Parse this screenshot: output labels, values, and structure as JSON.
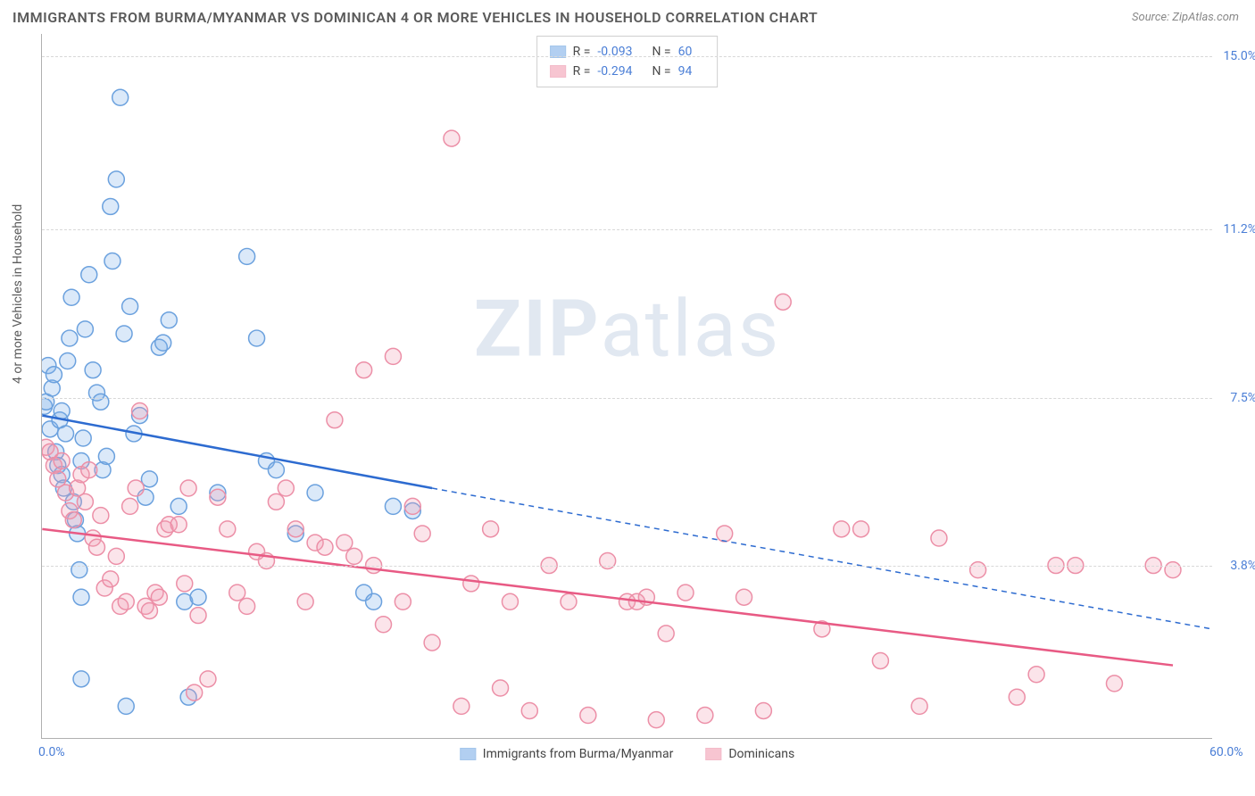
{
  "title": "IMMIGRANTS FROM BURMA/MYANMAR VS DOMINICAN 4 OR MORE VEHICLES IN HOUSEHOLD CORRELATION CHART",
  "source": "Source: ZipAtlas.com",
  "watermark": {
    "prefix": "ZIP",
    "suffix": "atlas"
  },
  "y_axis_title": "4 or more Vehicles in Household",
  "chart": {
    "type": "scatter",
    "xlim": [
      0,
      60
    ],
    "ylim": [
      0,
      15.5
    ],
    "x_ticks": [
      {
        "v": 0,
        "label": "0.0%"
      },
      {
        "v": 60,
        "label": "60.0%"
      }
    ],
    "y_ticks": [
      {
        "v": 3.8,
        "label": "3.8%"
      },
      {
        "v": 7.5,
        "label": "7.5%"
      },
      {
        "v": 11.2,
        "label": "11.2%"
      },
      {
        "v": 15.0,
        "label": "15.0%"
      }
    ],
    "grid_color": "#d8d8d8",
    "background_color": "#ffffff",
    "marker_radius": 9,
    "marker_stroke_width": 1.5,
    "line_width": 2.5,
    "series": [
      {
        "name": "Immigrants from Burma/Myanmar",
        "R": -0.093,
        "N": 60,
        "fill": "#7fb0e8",
        "fill_opacity": 0.28,
        "stroke": "#6ba1de",
        "line_color": "#2d6bd0",
        "points": [
          [
            0.1,
            7.3
          ],
          [
            0.2,
            7.4
          ],
          [
            0.3,
            8.2
          ],
          [
            0.4,
            6.8
          ],
          [
            0.5,
            7.7
          ],
          [
            0.6,
            8.0
          ],
          [
            0.7,
            6.3
          ],
          [
            0.8,
            6.0
          ],
          [
            0.9,
            7.0
          ],
          [
            1.0,
            7.2
          ],
          [
            1.0,
            5.8
          ],
          [
            1.1,
            5.5
          ],
          [
            1.2,
            6.7
          ],
          [
            1.3,
            8.3
          ],
          [
            1.4,
            8.8
          ],
          [
            1.5,
            9.7
          ],
          [
            1.6,
            5.2
          ],
          [
            1.7,
            4.8
          ],
          [
            1.8,
            4.5
          ],
          [
            1.9,
            3.7
          ],
          [
            2.0,
            3.1
          ],
          [
            2.0,
            6.1
          ],
          [
            2.1,
            6.6
          ],
          [
            2.2,
            9.0
          ],
          [
            2.4,
            10.2
          ],
          [
            2.6,
            8.1
          ],
          [
            2.8,
            7.6
          ],
          [
            3.0,
            7.4
          ],
          [
            3.1,
            5.9
          ],
          [
            3.3,
            6.2
          ],
          [
            3.5,
            11.7
          ],
          [
            3.6,
            10.5
          ],
          [
            3.8,
            12.3
          ],
          [
            4.0,
            14.1
          ],
          [
            4.2,
            8.9
          ],
          [
            4.5,
            9.5
          ],
          [
            4.7,
            6.7
          ],
          [
            5.0,
            7.1
          ],
          [
            5.3,
            5.3
          ],
          [
            5.5,
            5.7
          ],
          [
            6.0,
            8.6
          ],
          [
            6.2,
            8.7
          ],
          [
            6.5,
            9.2
          ],
          [
            7.0,
            5.1
          ],
          [
            7.3,
            3.0
          ],
          [
            7.5,
            0.9
          ],
          [
            8.0,
            3.1
          ],
          [
            9.0,
            5.4
          ],
          [
            10.5,
            10.6
          ],
          [
            11.0,
            8.8
          ],
          [
            11.5,
            6.1
          ],
          [
            12.0,
            5.9
          ],
          [
            13.0,
            4.5
          ],
          [
            14.0,
            5.4
          ],
          [
            16.5,
            3.2
          ],
          [
            17.0,
            3.0
          ],
          [
            18.0,
            5.1
          ],
          [
            19.0,
            5.0
          ],
          [
            2.0,
            1.3
          ],
          [
            4.3,
            0.7
          ]
        ],
        "trend_solid": {
          "x1": 0,
          "y1": 7.1,
          "x2": 20,
          "y2": 5.5
        },
        "trend_dashed": {
          "x1": 20,
          "y1": 5.5,
          "x2": 60,
          "y2": 2.4
        }
      },
      {
        "name": "Dominicans",
        "R": -0.294,
        "N": 94,
        "fill": "#f29fb4",
        "fill_opacity": 0.28,
        "stroke": "#ec8fa7",
        "line_color": "#e85a84",
        "points": [
          [
            0.2,
            6.4
          ],
          [
            0.4,
            6.3
          ],
          [
            0.6,
            6.0
          ],
          [
            0.8,
            5.7
          ],
          [
            1.0,
            6.1
          ],
          [
            1.2,
            5.4
          ],
          [
            1.4,
            5.0
          ],
          [
            1.6,
            4.8
          ],
          [
            1.8,
            5.5
          ],
          [
            2.0,
            5.8
          ],
          [
            2.2,
            5.2
          ],
          [
            2.4,
            5.9
          ],
          [
            2.6,
            4.4
          ],
          [
            2.8,
            4.2
          ],
          [
            3.0,
            4.9
          ],
          [
            3.2,
            3.3
          ],
          [
            3.5,
            3.5
          ],
          [
            3.8,
            4.0
          ],
          [
            4.0,
            2.9
          ],
          [
            4.3,
            3.0
          ],
          [
            4.5,
            5.1
          ],
          [
            4.8,
            5.5
          ],
          [
            5.0,
            7.2
          ],
          [
            5.3,
            2.9
          ],
          [
            5.5,
            2.8
          ],
          [
            5.8,
            3.2
          ],
          [
            6.0,
            3.1
          ],
          [
            6.3,
            4.6
          ],
          [
            6.5,
            4.7
          ],
          [
            7.0,
            4.7
          ],
          [
            7.3,
            3.4
          ],
          [
            7.5,
            5.5
          ],
          [
            8.0,
            2.7
          ],
          [
            8.5,
            1.3
          ],
          [
            9.0,
            5.3
          ],
          [
            9.5,
            4.6
          ],
          [
            10.0,
            3.2
          ],
          [
            10.5,
            2.9
          ],
          [
            11.0,
            4.1
          ],
          [
            11.5,
            3.9
          ],
          [
            12.0,
            5.2
          ],
          [
            12.5,
            5.5
          ],
          [
            13.0,
            4.6
          ],
          [
            13.5,
            3.0
          ],
          [
            14.0,
            4.3
          ],
          [
            14.5,
            4.2
          ],
          [
            15.0,
            7.0
          ],
          [
            15.5,
            4.3
          ],
          [
            16.0,
            4.0
          ],
          [
            16.5,
            8.1
          ],
          [
            17.0,
            3.8
          ],
          [
            17.5,
            2.5
          ],
          [
            18.0,
            8.4
          ],
          [
            18.5,
            3.0
          ],
          [
            19.0,
            5.1
          ],
          [
            19.5,
            4.5
          ],
          [
            20.0,
            2.1
          ],
          [
            21.0,
            13.2
          ],
          [
            21.5,
            0.7
          ],
          [
            22.0,
            3.4
          ],
          [
            23.0,
            4.6
          ],
          [
            23.5,
            1.1
          ],
          [
            24.0,
            3.0
          ],
          [
            25.0,
            0.6
          ],
          [
            26.0,
            3.8
          ],
          [
            27.0,
            3.0
          ],
          [
            28.0,
            0.5
          ],
          [
            29.0,
            3.9
          ],
          [
            30.0,
            3.0
          ],
          [
            30.5,
            3.0
          ],
          [
            31.0,
            3.1
          ],
          [
            31.5,
            0.4
          ],
          [
            32.0,
            2.3
          ],
          [
            33.0,
            3.2
          ],
          [
            34.0,
            0.5
          ],
          [
            35.0,
            4.5
          ],
          [
            36.0,
            3.1
          ],
          [
            37.0,
            0.6
          ],
          [
            38.0,
            9.6
          ],
          [
            40.0,
            2.4
          ],
          [
            41.0,
            4.6
          ],
          [
            42.0,
            4.6
          ],
          [
            43.0,
            1.7
          ],
          [
            45.0,
            0.7
          ],
          [
            46.0,
            4.4
          ],
          [
            48.0,
            3.7
          ],
          [
            50.0,
            0.9
          ],
          [
            51.0,
            1.4
          ],
          [
            52.0,
            3.8
          ],
          [
            53.0,
            3.8
          ],
          [
            55.0,
            1.2
          ],
          [
            57.0,
            3.8
          ],
          [
            58.0,
            3.7
          ],
          [
            7.8,
            1.0
          ]
        ],
        "trend_solid": {
          "x1": 0,
          "y1": 4.6,
          "x2": 58,
          "y2": 1.6
        }
      }
    ]
  },
  "legend_top": {
    "R_label": "R =",
    "N_label": "N ="
  },
  "legend_bottom": [
    {
      "label": "Immigrants from Burma/Myanmar",
      "fill": "#7fb0e8",
      "stroke": "#6ba1de"
    },
    {
      "label": "Dominicans",
      "fill": "#f29fb4",
      "stroke": "#ec8fa7"
    }
  ]
}
